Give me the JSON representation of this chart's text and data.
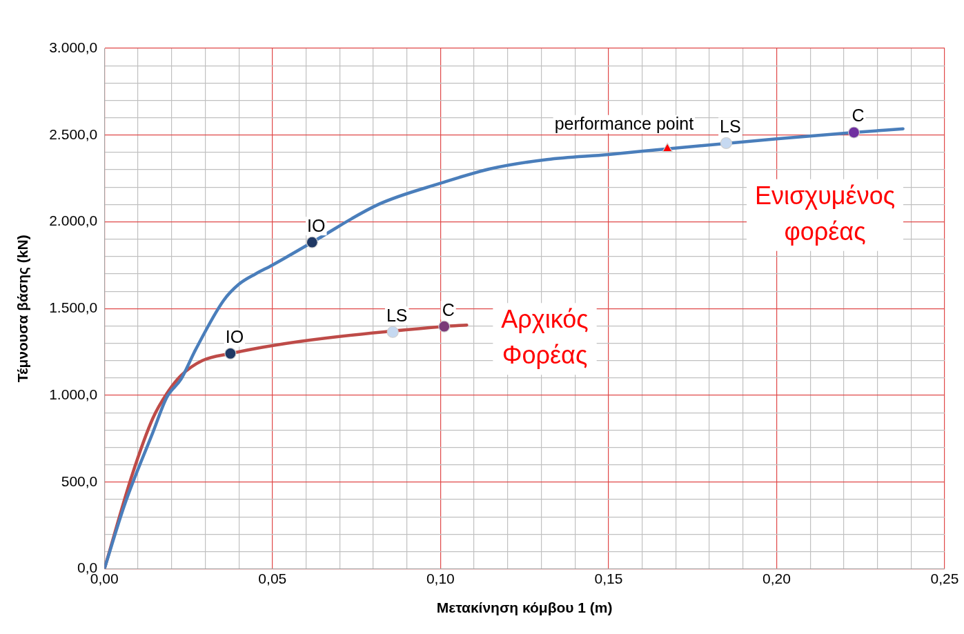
{
  "chart_data": {
    "type": "line",
    "xlabel": "Μετακίνηση κόμβου 1 (m)",
    "ylabel": "Τέμνουσα βάσης (kN)",
    "xlim": [
      0,
      0.25
    ],
    "xticks": [
      {
        "value": 0,
        "label": "0,00"
      },
      {
        "value": 0.01,
        "label": null
      },
      {
        "value": 0.02,
        "label": null
      },
      {
        "value": 0.03,
        "label": null
      },
      {
        "value": 0.04,
        "label": null
      },
      {
        "value": 0.05,
        "label": "0,05"
      },
      {
        "value": 0.06,
        "label": null
      },
      {
        "value": 0.07,
        "label": null
      },
      {
        "value": 0.08,
        "label": null
      },
      {
        "value": 0.09,
        "label": null
      },
      {
        "value": 0.1,
        "label": "0,10"
      },
      {
        "value": 0.11,
        "label": null
      },
      {
        "value": 0.12,
        "label": null
      },
      {
        "value": 0.13,
        "label": null
      },
      {
        "value": 0.14,
        "label": null
      },
      {
        "value": 0.15,
        "label": "0,15"
      },
      {
        "value": 0.16,
        "label": null
      },
      {
        "value": 0.17,
        "label": null
      },
      {
        "value": 0.18,
        "label": null
      },
      {
        "value": 0.19,
        "label": null
      },
      {
        "value": 0.2,
        "label": "0,20"
      },
      {
        "value": 0.21,
        "label": null
      },
      {
        "value": 0.22,
        "label": null
      },
      {
        "value": 0.23,
        "label": null
      },
      {
        "value": 0.24,
        "label": null
      },
      {
        "value": 0.25,
        "label": "0,25"
      }
    ],
    "ylim": [
      0,
      3000
    ],
    "yticks": [
      {
        "value": 0,
        "label": "0,0"
      },
      {
        "value": 100,
        "label": null
      },
      {
        "value": 200,
        "label": null
      },
      {
        "value": 300,
        "label": null
      },
      {
        "value": 400,
        "label": null
      },
      {
        "value": 500,
        "label": "500,0"
      },
      {
        "value": 600,
        "label": null
      },
      {
        "value": 700,
        "label": null
      },
      {
        "value": 800,
        "label": null
      },
      {
        "value": 900,
        "label": null
      },
      {
        "value": 1000,
        "label": "1.000,0"
      },
      {
        "value": 1100,
        "label": null
      },
      {
        "value": 1200,
        "label": null
      },
      {
        "value": 1300,
        "label": null
      },
      {
        "value": 1400,
        "label": null
      },
      {
        "value": 1500,
        "label": "1.500,0"
      },
      {
        "value": 1600,
        "label": null
      },
      {
        "value": 1700,
        "label": null
      },
      {
        "value": 1800,
        "label": null
      },
      {
        "value": 1900,
        "label": null
      },
      {
        "value": 2000,
        "label": "2.000,0"
      },
      {
        "value": 2100,
        "label": null
      },
      {
        "value": 2200,
        "label": null
      },
      {
        "value": 2300,
        "label": null
      },
      {
        "value": 2400,
        "label": null
      },
      {
        "value": 2500,
        "label": "2.500,0"
      },
      {
        "value": 2600,
        "label": null
      },
      {
        "value": 2700,
        "label": null
      },
      {
        "value": 2800,
        "label": null
      },
      {
        "value": 2900,
        "label": null
      },
      {
        "value": 3000,
        "label": "3.000,0"
      }
    ],
    "grid": true,
    "legend": false,
    "marker": "none",
    "line_style": "solid",
    "series": [
      {
        "name": "Ενισχυμένος φορέας",
        "color": "#4a7ebb",
        "x": [
          0,
          0.0061,
          0.0144,
          0.0186,
          0.0228,
          0.027,
          0.0354,
          0.04,
          0.045,
          0.05,
          0.0618,
          0.0815,
          0.1003,
          0.115,
          0.1317,
          0.15,
          0.1675,
          0.2,
          0.223,
          0.2376
        ],
        "values": [
          0,
          374,
          785,
          990,
          1093,
          1258,
          1545,
          1640,
          1700,
          1751,
          1882,
          2100,
          2224,
          2306,
          2359,
          2388,
          2421,
          2478,
          2515,
          2536
        ]
      },
      {
        "name": "Αρχικός Φορέας",
        "color": "#be4b48",
        "x": [
          0,
          0.0082,
          0.0144,
          0.0186,
          0.0228,
          0.0291,
          0.0375,
          0.0584,
          0.1011,
          0.1078
        ],
        "values": [
          0,
          538,
          867,
          1011,
          1114,
          1200,
          1241,
          1311,
          1397,
          1405
        ]
      },
      {
        "type": "scatter",
        "marker": "circle",
        "x": [
          0.0618,
          0.185,
          0.223,
          0.0375,
          0.0858,
          0.1011
        ],
        "values": [
          1882,
          2454,
          2515,
          1241,
          1365,
          1397
        ],
        "colors": [
          "#1f3864",
          "#c6d9f1",
          "#7030a0",
          "#1f3864",
          "#c6d9f1",
          "#7a3a78"
        ]
      },
      {
        "type": "scatter",
        "marker": "triangle",
        "x": [
          0.1675
        ],
        "values": [
          2421
        ],
        "color": "#ff0000"
      }
    ],
    "annotations": [
      {
        "text": "IO",
        "x": 0.0618,
        "y": 1882
      },
      {
        "text": "LS",
        "x": 0.185,
        "y": 2454
      },
      {
        "text": "C",
        "x": 0.223,
        "y": 2515
      },
      {
        "text": "IO",
        "x": 0.0375,
        "y": 1241
      },
      {
        "text": "LS",
        "x": 0.0858,
        "y": 1365
      },
      {
        "text": "C",
        "x": 0.1011,
        "y": 1397
      },
      {
        "text": "performance point",
        "x": 0.1675,
        "y": 2421
      }
    ]
  }
}
